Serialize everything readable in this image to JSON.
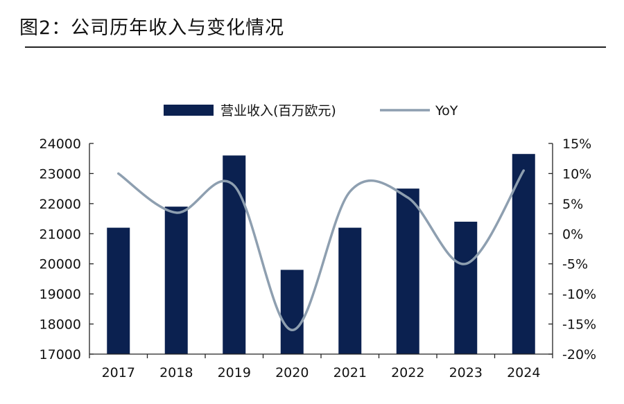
{
  "figure": {
    "title": "图2：公司历年收入与变化情况"
  },
  "colors": {
    "bar": "#0b2150",
    "line": "#8e9fb0",
    "axis": "#222222"
  },
  "chart_data": {
    "type": "bar",
    "categories": [
      "2017",
      "2018",
      "2019",
      "2020",
      "2021",
      "2022",
      "2023",
      "2024"
    ],
    "series": [
      {
        "name": "营业收入(百万欧元)",
        "type": "bar",
        "axis": "left",
        "values": [
          21200,
          21900,
          23600,
          19800,
          21200,
          22500,
          21400,
          23650
        ]
      },
      {
        "name": "YoY",
        "type": "line",
        "axis": "right",
        "smooth": true,
        "values": [
          10.0,
          3.5,
          8.0,
          -16.0,
          7.0,
          6.0,
          -5.0,
          10.5
        ]
      }
    ],
    "y_left": {
      "min": 17000,
      "max": 24000,
      "ticks": [
        "24000",
        "23000",
        "22000",
        "21000",
        "20000",
        "19000",
        "18000",
        "17000"
      ]
    },
    "y_right": {
      "min": -20,
      "max": 15,
      "ticks": [
        "15%",
        "10%",
        "5%",
        "0%",
        "-5%",
        "-10%",
        "-15%",
        "-20%"
      ]
    },
    "legend": {
      "position": "top-center"
    },
    "grid": false
  }
}
